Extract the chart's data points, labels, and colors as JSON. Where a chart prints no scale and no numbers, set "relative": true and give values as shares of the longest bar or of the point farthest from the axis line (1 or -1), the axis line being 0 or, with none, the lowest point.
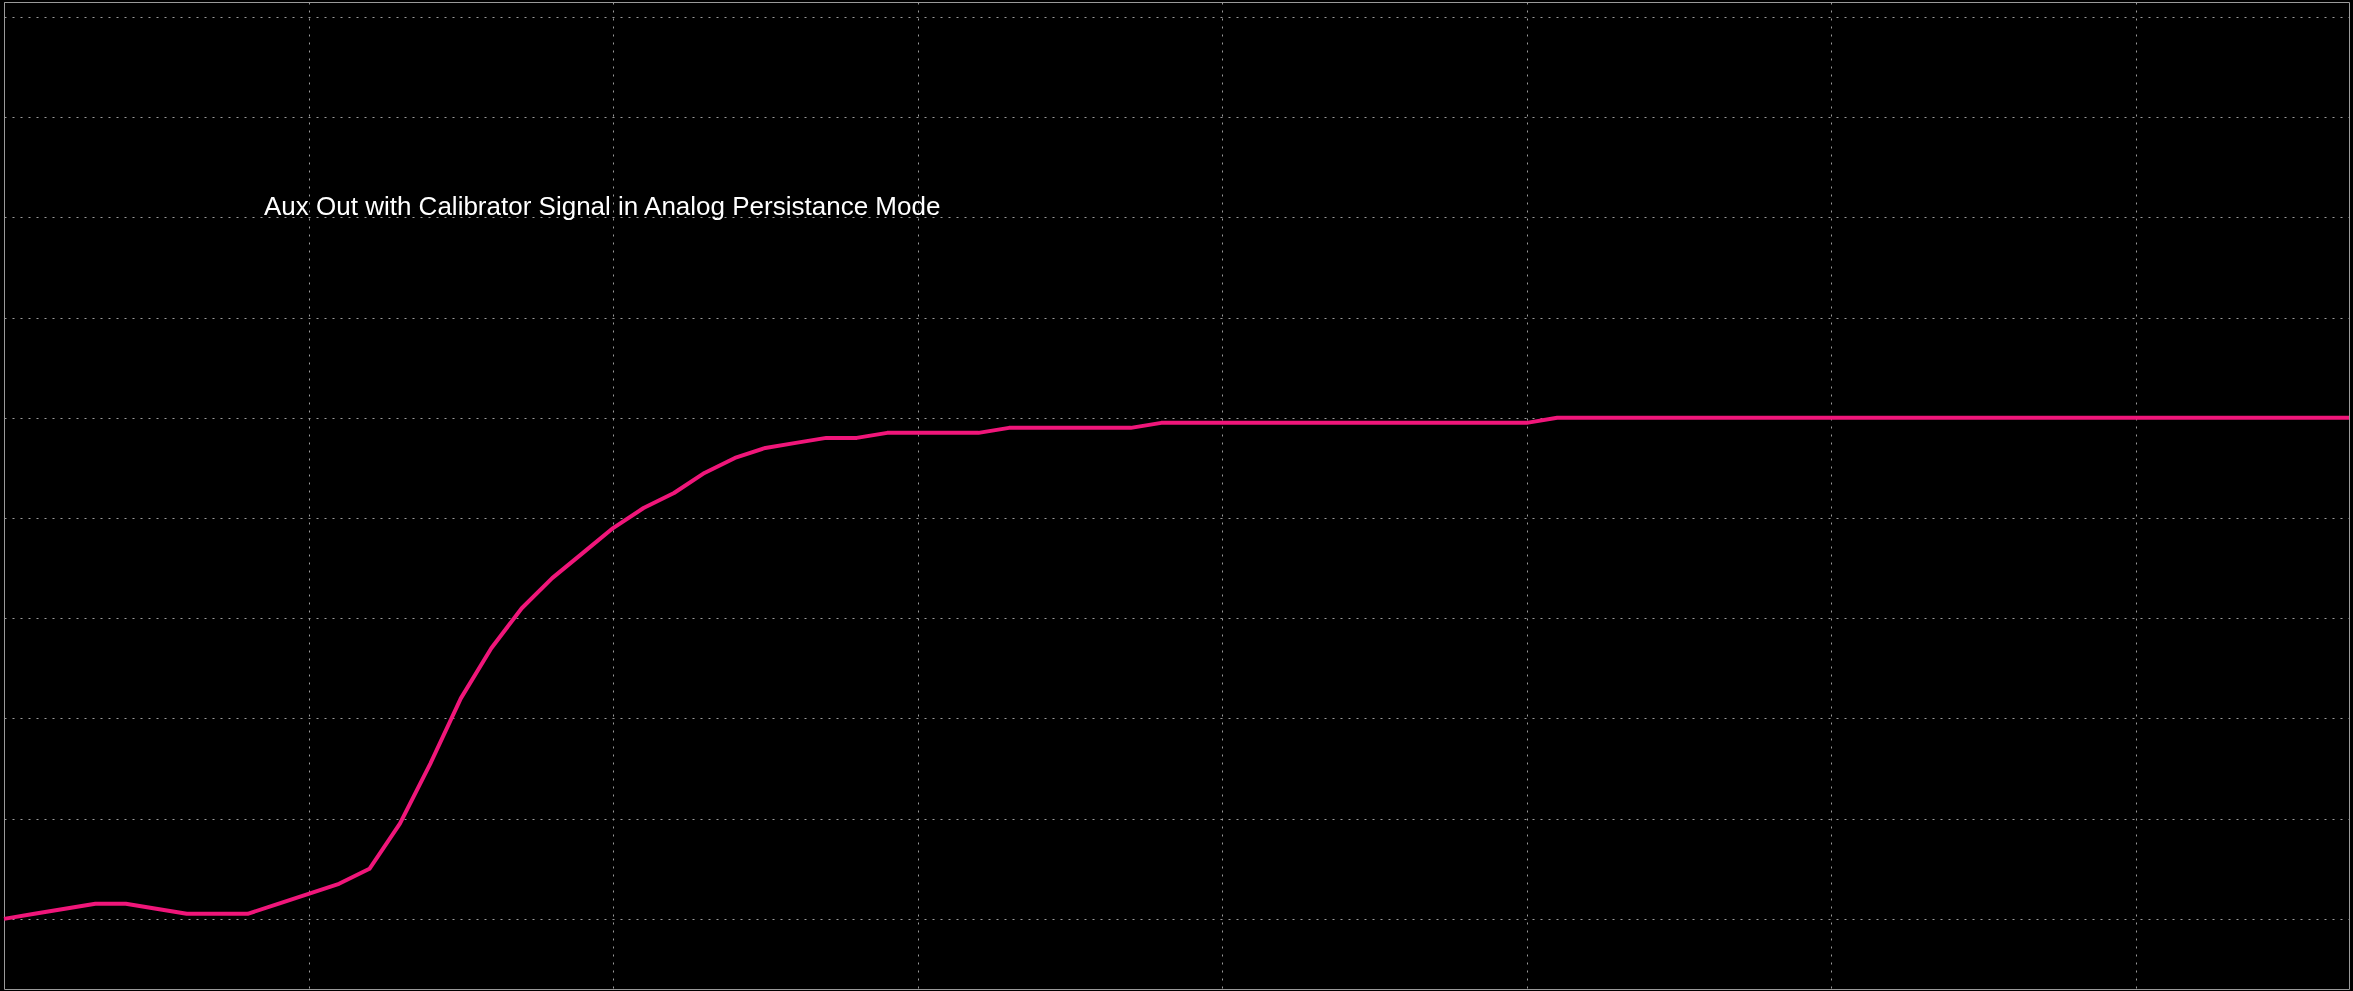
{
  "chart_data": {
    "type": "line",
    "relative": true,
    "grid": true,
    "legend": false,
    "tick_labels": false,
    "line_style": "solid",
    "marker": "none",
    "annotations": [
      "Aux Out with Calibrator Signal in Analog Persistance Mode"
    ],
    "categories": [
      null,
      null,
      null,
      null,
      null,
      null,
      null,
      null,
      null,
      null,
      null,
      null,
      null,
      null,
      null,
      null,
      null,
      null,
      null,
      null,
      null,
      null,
      null,
      null,
      null,
      null,
      null,
      null,
      null,
      null,
      null,
      null,
      null,
      null,
      null,
      null,
      null,
      null,
      null,
      null,
      null,
      null,
      null,
      null,
      null,
      null,
      null,
      null,
      null,
      null,
      null,
      null,
      null,
      null,
      null,
      null,
      null,
      null,
      null,
      null,
      null,
      null,
      null,
      null,
      null,
      null,
      null,
      null,
      null,
      null,
      null,
      null,
      null,
      null,
      null,
      null,
      null,
      null
    ],
    "series": [
      {
        "color": "#f0167a",
        "values": [
          0,
          0.01,
          0.02,
          0.03,
          0.03,
          0.02,
          0.01,
          0.01,
          0.01,
          0.03,
          0.05,
          0.07,
          0.1,
          0.19,
          0.31,
          0.44,
          0.54,
          0.62,
          0.68,
          0.73,
          0.78,
          0.82,
          0.85,
          0.89,
          0.92,
          0.94,
          0.95,
          0.96,
          0.96,
          0.97,
          0.97,
          0.97,
          0.97,
          0.98,
          0.98,
          0.98,
          0.98,
          0.98,
          0.99,
          0.99,
          0.99,
          0.99,
          0.99,
          0.99,
          0.99,
          0.99,
          0.99,
          0.99,
          0.99,
          0.99,
          0.99,
          1,
          1,
          1,
          1,
          1,
          1,
          1,
          1,
          1,
          1,
          1,
          1,
          1,
          1,
          1,
          1,
          1,
          1,
          1,
          1,
          1,
          1,
          1,
          1,
          1,
          1,
          1
        ]
      }
    ]
  }
}
